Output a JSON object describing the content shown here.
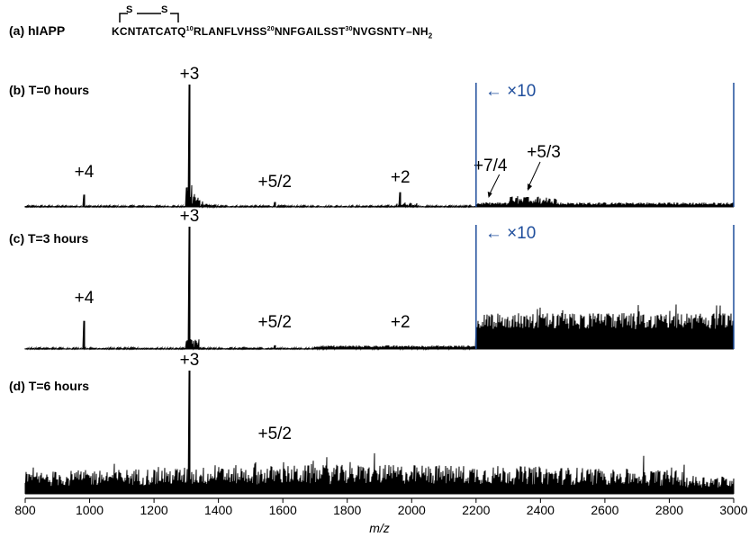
{
  "sequence": {
    "label": "(a) hIAPP",
    "part1": "KCNTATCATQ",
    "mark1": "10",
    "part2": "RLANFLVHSS",
    "mark2": "20",
    "part3": "NNFGAILSST",
    "mark3": "30",
    "part4": "NVGSNTY–NH",
    "sub": "2",
    "bridge_s1": "S",
    "bridge_s2": "S"
  },
  "chart_data": {
    "type": "line",
    "xlabel": "m/z",
    "xlim": [
      800,
      3000
    ],
    "x_ticks": [
      800,
      1000,
      1200,
      1400,
      1600,
      1800,
      2000,
      2200,
      2400,
      2600,
      2800,
      3000
    ],
    "zoom_color": "#1f4e9c",
    "panels": [
      {
        "id": "b",
        "title": "(b) T=0 hours",
        "zoom": {
          "from": 2200,
          "to": 3000,
          "label": "← ×10"
        },
        "peaks": [
          {
            "mz": 983,
            "rel": 0.1,
            "label": "+4"
          },
          {
            "mz": 1310,
            "rel": 1.0,
            "label": "+3"
          },
          {
            "mz": 1575,
            "rel": 0.04,
            "label": "+5/2"
          },
          {
            "mz": 1965,
            "rel": 0.12,
            "label": "+2"
          },
          {
            "mz": 2250,
            "rel": 0.03,
            "label": "+7/4"
          },
          {
            "mz": 2360,
            "rel": 0.08,
            "label": "+5/3"
          }
        ]
      },
      {
        "id": "c",
        "title": "(c) T=3 hours",
        "zoom": {
          "from": 2200,
          "to": 3000,
          "label": "← ×10"
        },
        "peaks": [
          {
            "mz": 983,
            "rel": 0.23,
            "label": "+4"
          },
          {
            "mz": 1310,
            "rel": 1.0,
            "label": "+3"
          },
          {
            "mz": 1575,
            "rel": 0.03,
            "label": "+5/2"
          },
          {
            "mz": 1965,
            "rel": 0.02,
            "label": "+2"
          }
        ]
      },
      {
        "id": "d",
        "title": "(d) T=6 hours",
        "peaks": [
          {
            "mz": 1310,
            "rel": 1.0,
            "label": "+3"
          },
          {
            "mz": 1575,
            "rel": 0.1,
            "label": "+5/2"
          }
        ]
      }
    ]
  }
}
